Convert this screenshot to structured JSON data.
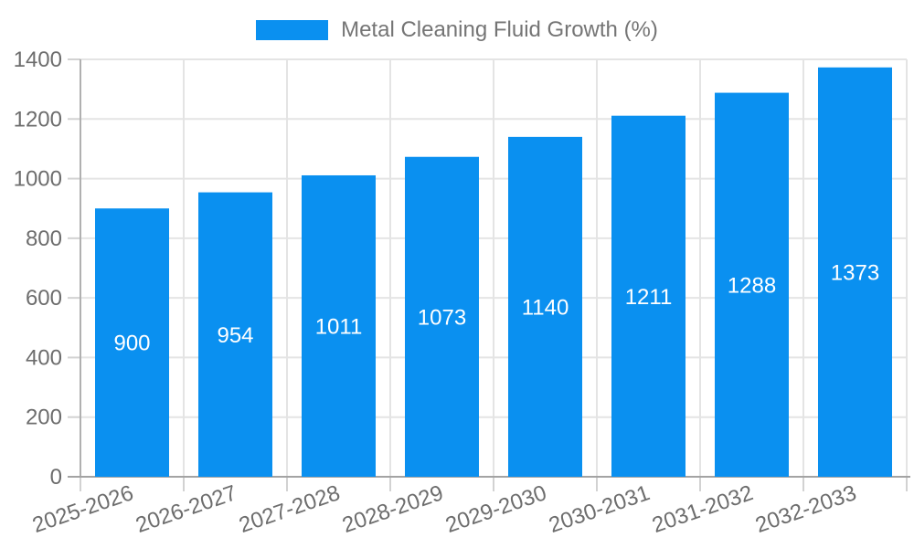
{
  "legend": {
    "label": "Metal Cleaning Fluid Growth (%)"
  },
  "chart_data": {
    "type": "bar",
    "title": "Metal Cleaning Fluid Growth (%)",
    "categories": [
      "2025-2026",
      "2026-2027",
      "2027-2028",
      "2028-2029",
      "2029-2030",
      "2030-2031",
      "2031-2032",
      "2032-2033"
    ],
    "values": [
      900,
      954,
      1011,
      1073,
      1140,
      1211,
      1288,
      1373
    ],
    "value_labels": [
      "900",
      "954",
      "1011",
      "1073",
      "1140",
      "1211",
      "1288",
      "1373"
    ],
    "xlabel": "",
    "ylabel": "",
    "ylim": [
      0,
      1400
    ],
    "yticks": [
      0,
      200,
      400,
      600,
      800,
      1000,
      1200,
      1400
    ],
    "grid": true,
    "legend_position": "top-center",
    "x_label_rotation_deg": -19,
    "colors": {
      "bar": "#0a90f0",
      "value_label": "#ffffff",
      "axis_text": "#6d6d6d",
      "legend_text": "#757575",
      "gridline": "#e4e4e4",
      "tick_mark": "#d2d2d2",
      "y_axis_line": "#b0b0b0",
      "x_axis_line": "#a3a3a3",
      "background": "#ffffff"
    }
  }
}
